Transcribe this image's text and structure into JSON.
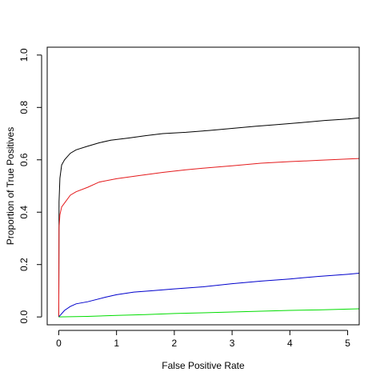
{
  "chart_data": {
    "type": "line",
    "title": "",
    "xlabel": "False Positive Rate",
    "ylabel": "Proportion of True Positives",
    "xlim": [
      -0.2,
      5.2
    ],
    "ylim": [
      -0.03,
      1.03
    ],
    "xticks": [
      0,
      1,
      2,
      3,
      4,
      5
    ],
    "xtick_labels": [
      "0",
      "1",
      "2",
      "3",
      "4",
      "5"
    ],
    "yticks": [
      0.0,
      0.2,
      0.4,
      0.6,
      0.8,
      1.0
    ],
    "ytick_labels": [
      "0.0",
      "0.2",
      "0.4",
      "0.6",
      "0.8",
      "1.0"
    ],
    "grid": false,
    "legend": "none",
    "series": [
      {
        "color": "#000000",
        "x": [
          0,
          0.005,
          0.02,
          0.05,
          0.1,
          0.2,
          0.3,
          0.5,
          0.7,
          0.9,
          1.2,
          1.5,
          1.8,
          2.2,
          2.6,
          3.0,
          3.4,
          3.8,
          4.2,
          4.6,
          5.0,
          5.2
        ],
        "y": [
          0.0,
          0.44,
          0.53,
          0.58,
          0.6,
          0.625,
          0.638,
          0.652,
          0.665,
          0.675,
          0.683,
          0.692,
          0.7,
          0.705,
          0.712,
          0.72,
          0.728,
          0.735,
          0.742,
          0.75,
          0.756,
          0.76
        ]
      },
      {
        "color": "#e41a1c",
        "x": [
          0,
          0.005,
          0.02,
          0.05,
          0.1,
          0.2,
          0.3,
          0.5,
          0.7,
          1.0,
          1.4,
          1.8,
          2.2,
          2.6,
          3.0,
          3.5,
          4.0,
          4.5,
          5.0,
          5.2
        ],
        "y": [
          0.0,
          0.34,
          0.39,
          0.42,
          0.435,
          0.465,
          0.478,
          0.495,
          0.515,
          0.528,
          0.54,
          0.552,
          0.562,
          0.57,
          0.577,
          0.587,
          0.593,
          0.598,
          0.603,
          0.605
        ]
      },
      {
        "color": "#0000cc",
        "x": [
          0,
          0.1,
          0.2,
          0.3,
          0.5,
          0.8,
          1.0,
          1.3,
          1.6,
          2.0,
          2.5,
          3.0,
          3.5,
          4.0,
          4.5,
          5.0,
          5.2
        ],
        "y": [
          0.0,
          0.025,
          0.04,
          0.05,
          0.058,
          0.075,
          0.085,
          0.095,
          0.1,
          0.107,
          0.115,
          0.127,
          0.137,
          0.145,
          0.155,
          0.163,
          0.167
        ]
      },
      {
        "color": "#00dd00",
        "x": [
          0,
          0.5,
          1.0,
          1.5,
          2.0,
          2.5,
          3.0,
          3.5,
          4.0,
          4.5,
          5.0,
          5.2
        ],
        "y": [
          0.0,
          0.002,
          0.006,
          0.009,
          0.013,
          0.016,
          0.019,
          0.022,
          0.025,
          0.027,
          0.03,
          0.031
        ]
      }
    ]
  }
}
